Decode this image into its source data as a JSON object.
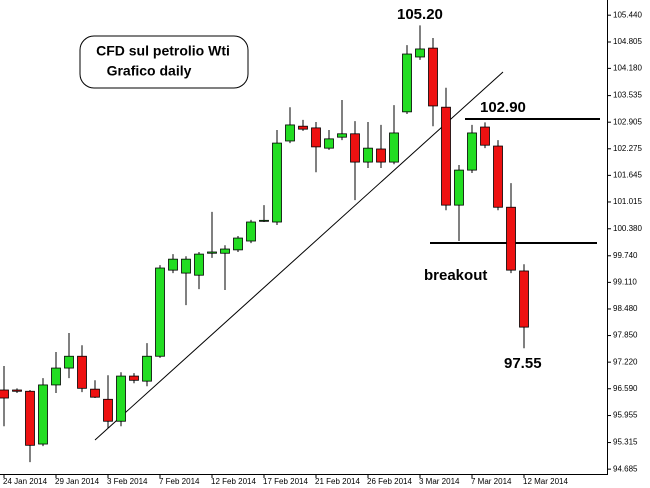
{
  "chart_data": {
    "type": "candlestick",
    "title": "CFD sul petrolio Wti",
    "subtitle": "Grafico daily",
    "annotations": [
      "105.20",
      "102.90",
      "breakout",
      "97.55"
    ],
    "categories": [
      "24 Jan 2014",
      null,
      null,
      null,
      "29 Jan 2014",
      null,
      null,
      null,
      "3 Feb 2014",
      null,
      null,
      null,
      "7 Feb 2014",
      null,
      null,
      null,
      "12 Feb 2014",
      null,
      null,
      null,
      "17 Feb 2014",
      null,
      null,
      null,
      "21 Feb 2014",
      null,
      null,
      null,
      "26 Feb 2014",
      null,
      null,
      null,
      "3 Mar 2014",
      null,
      null,
      null,
      "7 Mar 2014",
      null,
      null,
      null,
      "12 Mar 2014"
    ],
    "open": [
      96.56,
      96.56,
      96.53,
      95.28,
      96.68,
      97.08,
      97.36,
      96.58,
      96.34,
      95.82,
      96.89,
      96.77,
      97.36,
      99.4,
      99.33,
      99.28,
      99.8,
      99.8,
      99.88,
      100.09,
      100.56,
      100.54,
      102.46,
      102.81,
      102.77,
      102.29,
      102.55,
      102.63,
      101.96,
      102.27,
      101.96,
      103.15,
      104.45,
      104.66,
      103.26,
      100.94,
      101.77,
      102.79,
      102.34,
      100.89,
      99.38
    ],
    "high": [
      97.13,
      96.6,
      96.56,
      96.84,
      97.46,
      97.91,
      97.62,
      96.79,
      96.91,
      96.98,
      96.96,
      97.67,
      99.52,
      99.78,
      99.73,
      99.83,
      100.78,
      99.99,
      100.21,
      100.59,
      100.94,
      102.72,
      103.26,
      102.96,
      102.91,
      102.72,
      103.43,
      102.93,
      102.91,
      102.84,
      103.31,
      104.73,
      105.2,
      104.9,
      103.72,
      101.89,
      102.84,
      102.9,
      102.48,
      101.46,
      99.54
    ],
    "low": [
      95.7,
      96.49,
      94.85,
      95.23,
      96.49,
      96.84,
      96.51,
      96.37,
      95.66,
      95.7,
      96.72,
      96.65,
      97.32,
      99.33,
      98.57,
      98.95,
      99.69,
      98.93,
      99.83,
      100.04,
      100.54,
      100.47,
      102.41,
      102.7,
      101.72,
      102.25,
      102.48,
      101.06,
      101.82,
      101.82,
      101.91,
      103.1,
      104.38,
      102.81,
      100.82,
      100.09,
      101.7,
      102.29,
      100.82,
      99.33,
      97.55
    ],
    "close": [
      96.37,
      96.53,
      95.25,
      96.68,
      97.08,
      97.36,
      96.6,
      96.39,
      95.82,
      96.89,
      96.79,
      97.36,
      99.45,
      99.66,
      99.66,
      99.78,
      99.83,
      99.9,
      100.16,
      100.54,
      100.58,
      102.41,
      102.84,
      102.74,
      102.32,
      102.51,
      102.63,
      101.96,
      102.29,
      101.96,
      102.65,
      104.52,
      104.64,
      103.29,
      100.94,
      101.77,
      102.65,
      102.36,
      100.89,
      99.4,
      98.05
    ],
    "up_color": "#22dd22",
    "down_color": "#ee1111",
    "ylim": [
      94.57,
      105.8
    ],
    "yticks": [
      94.685,
      95.315,
      95.955,
      {
        "value": 96.59,
        "label": "96.590"
      },
      {
        "value": 97.22,
        "label": "97.220"
      },
      {
        "value": 97.85,
        "label": "97.850"
      },
      {
        "value": 98.48,
        "label": "98.480"
      },
      {
        "value": 99.11,
        "label": "99.110"
      },
      {
        "value": 99.74,
        "label": "99.740"
      },
      {
        "value": 100.38,
        "label": "100.380"
      },
      101.015,
      101.645,
      102.275,
      102.905,
      103.535,
      {
        "value": 104.18,
        "label": "104.180"
      },
      104.805,
      {
        "value": 105.44,
        "label": "105.440"
      }
    ]
  }
}
